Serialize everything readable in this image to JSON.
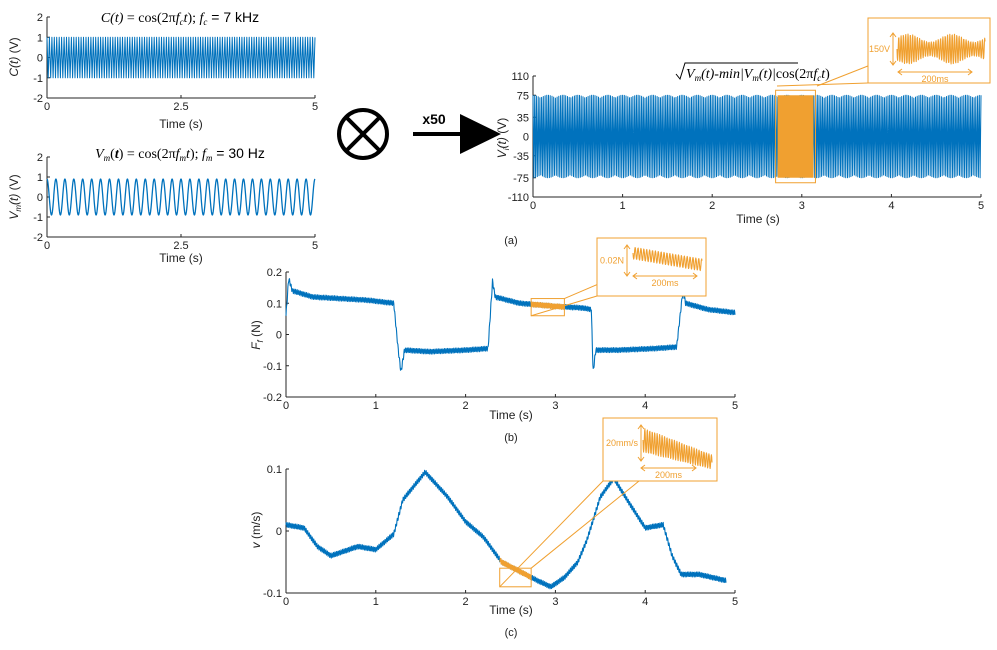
{
  "colors": {
    "signal": "#0072BD",
    "highlight": "#F0A030",
    "axis": "#262626",
    "text": "#222222"
  },
  "operator": {
    "symbol_icon": "multiply-circle-icon",
    "gain_label": "x50",
    "arrow_icon": "right-arrow-icon"
  },
  "captions": {
    "a": "(a)",
    "b": "(b)",
    "c": "(c)"
  },
  "chart_data": [
    {
      "id": "carrier",
      "type": "line",
      "title": {
        "lhs": "C(t)",
        "mid": " = cos(2πf",
        "sub": "c",
        "rhs": "t); f",
        "sub2": "c",
        "tail": " = 7 kHz"
      },
      "xlabel": "Time (s)",
      "ylabel": "C(t) (V)",
      "xlim": [
        0,
        5
      ],
      "ylim": [
        -2,
        2
      ],
      "xticks": [
        0,
        2.5,
        5
      ],
      "xtick_labels": [
        "0",
        "2.5",
        "5"
      ],
      "yticks": [
        -2,
        -1,
        0,
        1,
        2
      ],
      "ytick_labels": [
        "-2",
        "-1",
        "0",
        "1",
        "2"
      ],
      "series": [
        {
          "amplitude": 1,
          "frequency_hz": 7000
        }
      ]
    },
    {
      "id": "modulating",
      "type": "line",
      "title": {
        "lhs": "V",
        "sub": "m",
        "mid": "(t) = cos(2πf",
        "sub2": "m",
        "rhs": "t); f",
        "sub3": "m",
        "tail": " = 30 Hz"
      },
      "xlabel": "Time (s)",
      "ylabel": "V_m(t) (V)",
      "xlim": [
        0,
        5
      ],
      "ylim": [
        -2,
        2
      ],
      "xticks": [
        0,
        2.5,
        5
      ],
      "xtick_labels": [
        "0",
        "2.5",
        "5"
      ],
      "yticks": [
        -2,
        -1,
        0,
        1,
        2
      ],
      "ytick_labels": [
        "-2",
        "-1",
        "0",
        "1",
        "2"
      ],
      "series": [
        {
          "amplitude": 0.9,
          "frequency_hz": 30
        }
      ]
    },
    {
      "id": "input-voltage",
      "type": "line",
      "title": "√(V_m(t)-min|V_m(t)|)cos(2πf_c t)",
      "xlabel": "Time (s)",
      "ylabel": "V_i(t) (V)",
      "xlim": [
        0,
        5
      ],
      "ylim": [
        -110,
        110
      ],
      "xticks": [
        0,
        1,
        2,
        3,
        4,
        5
      ],
      "xtick_labels": [
        "0",
        "1",
        "2",
        "3",
        "4",
        "5"
      ],
      "yticks": [
        -110,
        -75,
        -35,
        0,
        35,
        75,
        110
      ],
      "ytick_labels": [
        "-110",
        "-75",
        "-35",
        "0",
        "35",
        "75",
        "110"
      ],
      "series": [
        {
          "amplitude": 75
        }
      ],
      "highlight_range": [
        2.73,
        3.13
      ],
      "inset": {
        "amp_label": "150V",
        "time_label": "200ms"
      }
    },
    {
      "id": "friction-force",
      "type": "line",
      "xlabel": "Time (s)",
      "ylabel": "F_f (N)",
      "xlim": [
        0,
        5
      ],
      "ylim": [
        -0.2,
        0.2
      ],
      "xticks": [
        0,
        1,
        2,
        3,
        4,
        5
      ],
      "xtick_labels": [
        "0",
        "1",
        "2",
        "3",
        "4",
        "5"
      ],
      "yticks": [
        -0.2,
        -0.1,
        0,
        0.1,
        0.2
      ],
      "ytick_labels": [
        "-0.2",
        "-0.1",
        "0",
        "0.1",
        "0.2"
      ],
      "series": [
        {
          "x": [
            0,
            0.03,
            0.07,
            0.3,
            0.6,
            0.9,
            1.2,
            1.25,
            1.28,
            1.32,
            1.6,
            2.0,
            2.25,
            2.3,
            2.33,
            2.6,
            3.0,
            3.3,
            3.4,
            3.42,
            3.45,
            3.7,
            4.1,
            4.35,
            4.42,
            4.45,
            4.7,
            5.0
          ],
          "y": [
            0.06,
            0.18,
            0.14,
            0.12,
            0.115,
            0.11,
            0.1,
            -0.05,
            -0.12,
            -0.05,
            -0.055,
            -0.05,
            -0.045,
            0.17,
            0.12,
            0.1,
            0.09,
            0.085,
            0.08,
            -0.12,
            -0.05,
            -0.05,
            -0.045,
            -0.04,
            0.14,
            0.1,
            0.08,
            0.07
          ]
        }
      ],
      "highlight_range": [
        2.73,
        3.1
      ],
      "inset": {
        "amp_label": "0.02N",
        "time_label": "200ms"
      }
    },
    {
      "id": "velocity",
      "type": "line",
      "xlabel": "Time (s)",
      "ylabel": "v (m/s)",
      "xlim": [
        0,
        5
      ],
      "ylim": [
        -0.1,
        0.1
      ],
      "xticks": [
        0,
        1,
        2,
        3,
        4,
        5
      ],
      "xtick_labels": [
        "0",
        "1",
        "2",
        "3",
        "4",
        "5"
      ],
      "yticks": [
        -0.1,
        0,
        0.1
      ],
      "ytick_labels": [
        "-0.1",
        "0",
        "0.1"
      ],
      "series": [
        {
          "x": [
            0,
            0.2,
            0.35,
            0.5,
            0.8,
            1.0,
            1.2,
            1.3,
            1.55,
            1.8,
            2.0,
            2.2,
            2.4,
            2.6,
            2.8,
            2.95,
            3.1,
            3.25,
            3.35,
            3.5,
            3.65,
            3.8,
            4.0,
            4.2,
            4.3,
            4.4,
            4.6,
            4.9
          ],
          "y": [
            0.01,
            0.005,
            -0.025,
            -0.04,
            -0.025,
            -0.03,
            -0.005,
            0.05,
            0.095,
            0.055,
            0.015,
            -0.01,
            -0.05,
            -0.065,
            -0.08,
            -0.09,
            -0.075,
            -0.05,
            -0.015,
            0.055,
            0.085,
            0.05,
            0.005,
            0.01,
            -0.04,
            -0.07,
            -0.07,
            -0.08
          ]
        }
      ],
      "highlight_range": [
        2.38,
        2.73
      ],
      "inset": {
        "amp_label": "20mm/s",
        "time_label": "200ms"
      }
    }
  ]
}
